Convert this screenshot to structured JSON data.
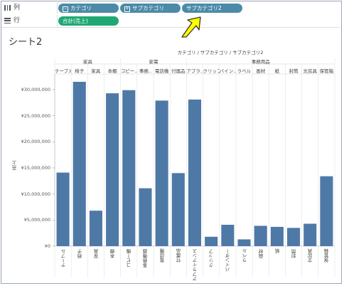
{
  "shelves": {
    "columns": {
      "label": "列",
      "pills": [
        "カテゴリ",
        "サブカテゴリ",
        "サブカテゴリ2"
      ]
    },
    "rows": {
      "label": "行",
      "pills": [
        "合計(売上)"
      ]
    }
  },
  "sheet": {
    "title": "シート2"
  },
  "colors": {
    "bar": "#4e79a7",
    "pill_dim": "#4b8ba8",
    "pill_measure": "#1fa874",
    "arrow_fill": "#ffff00"
  },
  "chart_data": {
    "type": "bar",
    "header": "カテゴリ / サブカテゴリ / サブカテゴリ2",
    "ylabel": "売上",
    "ylim": [
      0,
      33000000
    ],
    "yticks": [
      0,
      5000000,
      10000000,
      15000000,
      20000000,
      25000000,
      30000000
    ],
    "ytick_labels": [
      "¥0",
      "¥5,000,000",
      "¥10,000,000",
      "¥15,000,000",
      "¥20,000,000",
      "¥25,000,000",
      "¥30,000,000"
    ],
    "groups": [
      {
        "name": "家具",
        "count": 4
      },
      {
        "name": "家電",
        "count": 4
      },
      {
        "name": "事務用品",
        "count": 9
      }
    ],
    "subcategories": [
      "テーブル",
      "椅子",
      "家具",
      "本棚",
      "コピー..",
      "事務..",
      "電話機",
      "付属品",
      "アプラ..",
      "クリップ",
      "バイン..",
      "ラベル",
      "画材",
      "紙",
      "封筒",
      "文房具",
      "保管箱"
    ],
    "categories": [
      "テーブル",
      "椅子",
      "家具",
      "本棚",
      "コピー機",
      "事務機器",
      "電話機",
      "付属品",
      "アプライアンス",
      "クリップ",
      "バインダー",
      "ラベル",
      "画材",
      "紙",
      "封筒",
      "文房具",
      "保管箱"
    ],
    "values": [
      14100000,
      31500000,
      6800000,
      29300000,
      29900000,
      11100000,
      27900000,
      14000000,
      28100000,
      1800000,
      4100000,
      1300000,
      3900000,
      3700000,
      3500000,
      4300000,
      13400000
    ]
  }
}
